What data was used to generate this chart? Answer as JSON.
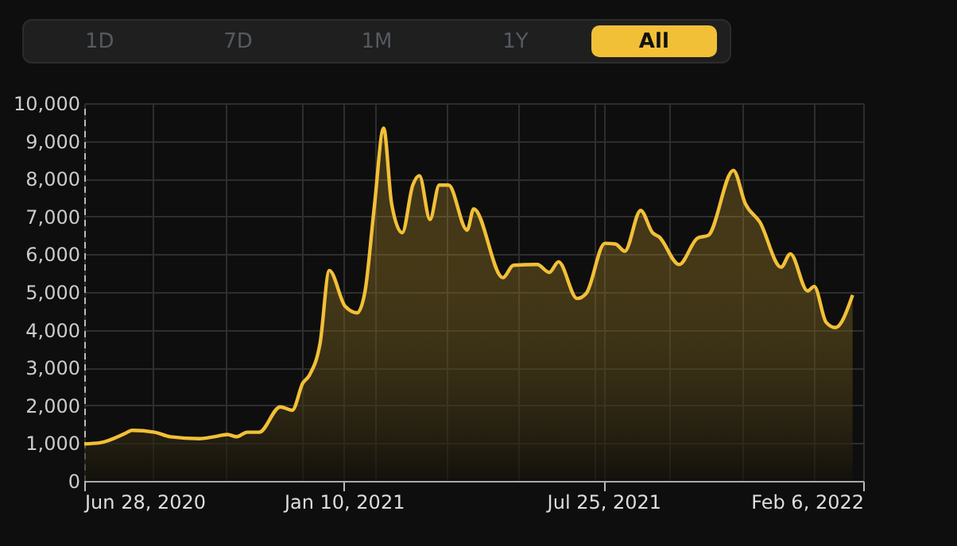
{
  "chart_data": {
    "type": "area",
    "annotations": [
      "1D",
      "7D",
      "1M",
      "1Y",
      "All"
    ],
    "x": [
      "2020-06-28",
      "2020-07-10",
      "2020-07-29",
      "2020-08-03",
      "2020-08-20",
      "2020-09-01",
      "2020-09-23",
      "2020-10-04",
      "2020-10-14",
      "2020-10-21",
      "2020-10-29",
      "2020-11-07",
      "2020-11-23",
      "2020-12-02",
      "2020-12-10",
      "2020-12-15",
      "2020-12-23",
      "2020-12-30",
      "2021-01-11",
      "2021-01-20",
      "2021-01-26",
      "2021-02-02",
      "2021-02-09",
      "2021-02-15",
      "2021-02-23",
      "2021-03-03",
      "2021-03-08",
      "2021-03-16",
      "2021-03-23",
      "2021-03-30",
      "2021-04-13",
      "2021-04-18",
      "2021-05-10",
      "2021-05-18",
      "2021-06-05",
      "2021-06-14",
      "2021-06-21",
      "2021-07-05",
      "2021-07-12",
      "2021-07-26",
      "2021-08-03",
      "2021-08-10",
      "2021-08-22",
      "2021-08-31",
      "2021-09-05",
      "2021-09-20",
      "2021-10-04",
      "2021-10-12",
      "2021-10-31",
      "2021-11-09",
      "2021-11-20",
      "2021-12-06",
      "2021-12-13",
      "2021-12-26",
      "2021-12-31",
      "2022-01-09",
      "2022-01-16",
      "2022-01-29"
    ],
    "series": [
      {
        "color": "#f2c037",
        "values": [
          980,
          1010,
          1260,
          1340,
          1290,
          1170,
          1120,
          1170,
          1230,
          1170,
          1290,
          1290,
          1960,
          1870,
          2590,
          2800,
          3640,
          5570,
          4620,
          4450,
          5030,
          7270,
          9340,
          7340,
          6570,
          7830,
          8080,
          6920,
          7830,
          7830,
          6640,
          7200,
          5380,
          5710,
          5730,
          5520,
          5800,
          4830,
          4970,
          6290,
          6270,
          6080,
          7160,
          6570,
          6460,
          5730,
          6430,
          6500,
          8220,
          7340,
          6850,
          5660,
          6010,
          5030,
          5150,
          4200,
          4060,
          4920
        ]
      }
    ],
    "xlim": [
      "2020-06-28",
      "2022-02-06"
    ],
    "xticks": [
      {
        "value": "2020-06-28",
        "label": "Jun 28, 2020"
      },
      {
        "value": "2020-08-19",
        "label": null
      },
      {
        "value": "2020-10-13",
        "label": null
      },
      {
        "value": "2020-12-09",
        "label": null
      },
      {
        "value": "2021-01-10",
        "label": "Jan 10, 2021"
      },
      {
        "value": "2021-02-02",
        "label": null
      },
      {
        "value": "2021-03-29",
        "label": null
      },
      {
        "value": "2021-05-21",
        "label": null
      },
      {
        "value": "2021-07-18",
        "label": null
      },
      {
        "value": "2021-07-25",
        "label": "Jul 25, 2021"
      },
      {
        "value": "2021-09-13",
        "label": null
      },
      {
        "value": "2021-11-07",
        "label": null
      },
      {
        "value": "2021-12-31",
        "label": null
      },
      {
        "value": "2022-02-06",
        "label": "Feb 6, 2022"
      }
    ],
    "ylim": [
      0,
      10000
    ],
    "yticks": [
      0,
      {
        "value": 1000,
        "label": "1,000"
      },
      {
        "value": 2000,
        "label": "2,000"
      },
      {
        "value": 3000,
        "label": "3,000"
      },
      {
        "value": 4000,
        "label": "4,000"
      },
      {
        "value": 5000,
        "label": "5,000"
      },
      {
        "value": 6000,
        "label": "6,000"
      },
      {
        "value": 7000,
        "label": "7,000"
      },
      {
        "value": 8000,
        "label": "8,000"
      },
      {
        "value": 9000,
        "label": "9,000"
      },
      {
        "value": 10000,
        "label": "10,000"
      }
    ],
    "grid": true
  }
}
